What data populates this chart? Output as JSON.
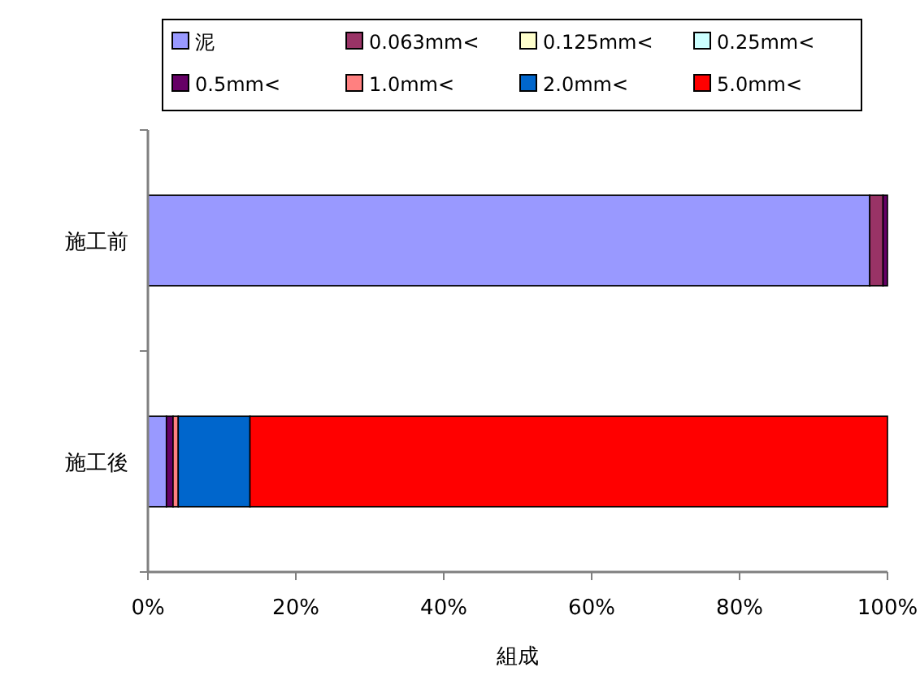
{
  "chart_data": {
    "type": "bar",
    "orientation": "horizontal",
    "stacked": true,
    "xlabel": "組成",
    "categories": [
      "施工前",
      "施工後"
    ],
    "series": [
      {
        "name": "泥",
        "color": "#9999ff",
        "values": [
          97.6,
          2.5
        ]
      },
      {
        "name": "0.063mm<",
        "color": "#993366",
        "values": [
          1.8,
          0
        ]
      },
      {
        "name": "0.125mm<",
        "color": "#ffffcc",
        "values": [
          null,
          0
        ]
      },
      {
        "name": "0.25mm<",
        "color": "#ccffff",
        "values": [
          null,
          0
        ]
      },
      {
        "name": "0.5mm<",
        "color": "#660066",
        "values": [
          0.6,
          0.9
        ]
      },
      {
        "name": "1.0mm<",
        "color": "#ff8080",
        "values": [
          0,
          0.7
        ]
      },
      {
        "name": "2.0mm<",
        "color": "#0066cc",
        "values": [
          0,
          9.7
        ]
      },
      {
        "name": "5.0mm<",
        "color": "#ff0000",
        "values": [
          0,
          86.2
        ]
      }
    ],
    "xlim": [
      0,
      100
    ],
    "xticks": [
      {
        "value": 0,
        "label": "0%"
      },
      {
        "value": 20,
        "label": "20%"
      },
      {
        "value": 40,
        "label": "40%"
      },
      {
        "value": 60,
        "label": "60%"
      },
      {
        "value": 80,
        "label": "80%"
      },
      {
        "value": 100,
        "label": "100%"
      }
    ],
    "grid": false,
    "legend": "top"
  }
}
